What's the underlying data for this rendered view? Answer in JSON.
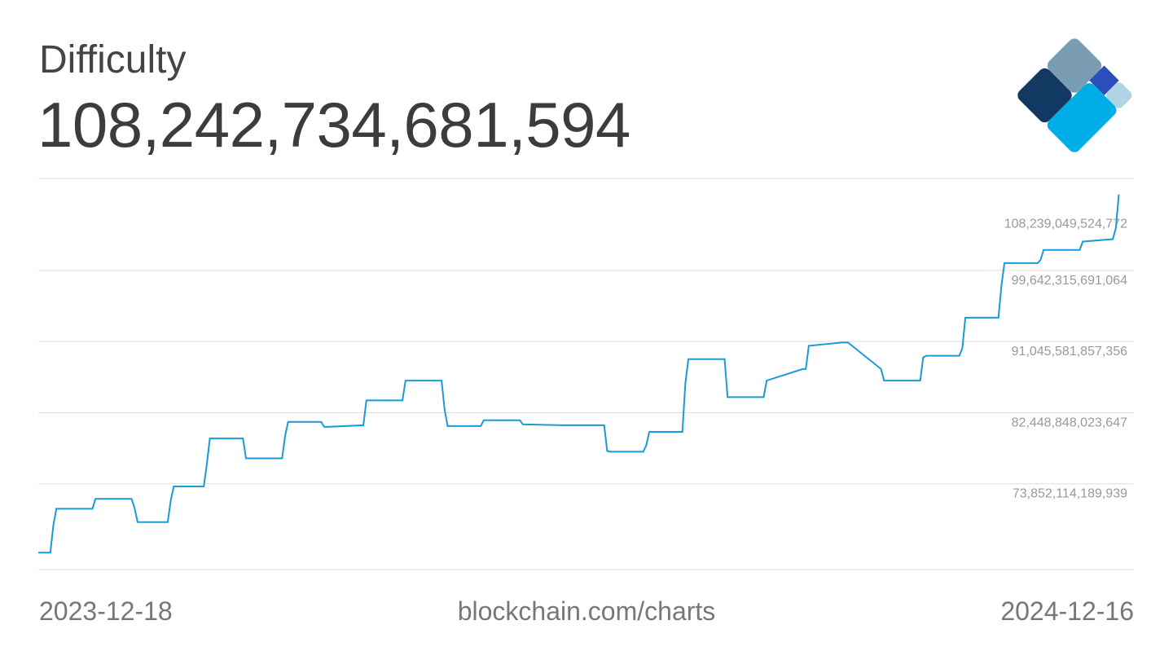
{
  "header": {
    "title": "Difficulty",
    "current_value": "108,242,734,681,594"
  },
  "logo": {
    "icon": "blockchain-logo-icon",
    "colors": [
      "#7b9db4",
      "#123962",
      "#2b4fba",
      "#00aee6",
      "#b1d4e5"
    ]
  },
  "footer": {
    "start_date": "2023-12-18",
    "source": "blockchain.com/charts",
    "end_date": "2024-12-16"
  },
  "chart_data": {
    "type": "line",
    "title": "Difficulty",
    "xlabel": "",
    "ylabel": "",
    "xlim": [
      "2023-12-18",
      "2024-12-16"
    ],
    "ylim": [
      65255380356231,
      112537416441626
    ],
    "grid": true,
    "line_color": "#1a9ad6",
    "y_ticks": [
      {
        "value": 108239049524772,
        "label": "108,239,049,524,772"
      },
      {
        "value": 99642315691064,
        "label": "99,642,315,691,064"
      },
      {
        "value": 91045581857356,
        "label": "91,045,581,857,356"
      },
      {
        "value": 82448848023647,
        "label": "82,448,848,023,647"
      },
      {
        "value": 73852114189939,
        "label": "73,852,114,189,939"
      }
    ],
    "series": [
      {
        "x": [
          "2023-12-18",
          "2023-12-22",
          "2023-12-23",
          "2023-12-24",
          "2023-12-29",
          "2024-01-05",
          "2024-01-06",
          "2024-01-18",
          "2024-01-19",
          "2024-01-20",
          "2024-01-30",
          "2024-01-31",
          "2024-02-01",
          "2024-02-11",
          "2024-02-12",
          "2024-02-13",
          "2024-02-24",
          "2024-02-25",
          "2024-03-08",
          "2024-03-09",
          "2024-03-10",
          "2024-03-21",
          "2024-03-22",
          "2024-03-23",
          "2024-04-04",
          "2024-04-05",
          "2024-04-06",
          "2024-04-17",
          "2024-04-18",
          "2024-04-19",
          "2024-04-30",
          "2024-05-01",
          "2024-05-02",
          "2024-05-13",
          "2024-05-14",
          "2024-05-15",
          "2024-05-26",
          "2024-05-27",
          "2024-05-28",
          "2024-06-09",
          "2024-06-10",
          "2024-06-11",
          "2024-06-23",
          "2024-06-24",
          "2024-06-25",
          "2024-07-06",
          "2024-07-07",
          "2024-07-08",
          "2024-07-19",
          "2024-07-20",
          "2024-07-21",
          "2024-08-01",
          "2024-08-02",
          "2024-08-03",
          "2024-08-14",
          "2024-08-15",
          "2024-08-16",
          "2024-08-28",
          "2024-08-29",
          "2024-08-30",
          "2024-09-10",
          "2024-09-11",
          "2024-09-12",
          "2024-09-23",
          "2024-09-24",
          "2024-09-25",
          "2024-10-06",
          "2024-10-07",
          "2024-10-08",
          "2024-10-19",
          "2024-10-20",
          "2024-10-21",
          "2024-11-01",
          "2024-11-02",
          "2024-11-03",
          "2024-11-14",
          "2024-11-15",
          "2024-11-16",
          "2024-11-27",
          "2024-11-28",
          "2024-11-29",
          "2024-12-09",
          "2024-12-10",
          "2024-12-11"
        ],
        "y": [
          67300000000000,
          67300000000000,
          70600000000000,
          72600000000000,
          72600000000000,
          72600000000000,
          73800000000000,
          73800000000000,
          72700000000000,
          71000000000000,
          71000000000000,
          73600000000000,
          75300000000000,
          75300000000000,
          78000000000000,
          81100000000000,
          81100000000000,
          78700000000000,
          78700000000000,
          81400000000000,
          83100000000000,
          83100000000000,
          82500000000000,
          82500000000000,
          82700000000000,
          85700000000000,
          85700000000000,
          85700000000000,
          88100000000000,
          88100000000000,
          88100000000000,
          84600000000000,
          82600000000000,
          82600000000000,
          83300000000000,
          83300000000000,
          83300000000000,
          82800000000000,
          82800000000000,
          82700000000000,
          82700000000000,
          82700000000000,
          82700000000000,
          79600000000000,
          79500000000000,
          79500000000000,
          80300000000000,
          81900000000000,
          81900000000000,
          87800000000000,
          90700000000000,
          90700000000000,
          90700000000000,
          86100000000000,
          86100000000000,
          86100000000000,
          88100000000000,
          89500000000000,
          89500000000000,
          92300000000000,
          92700000000000,
          92700000000000,
          92700000000000,
          89500000000000,
          88100000000000,
          88100000000000,
          88100000000000,
          90900000000000,
          91100000000000,
          91100000000000,
          92000000000000,
          95700000000000,
          95700000000000,
          99600000000000,
          102300000000000,
          102300000000000,
          102700000000000,
          103900000000000,
          103900000000000,
          103900000000000,
          104900000000000,
          105200000000000,
          106500000000000,
          110600000000000
        ]
      }
    ]
  }
}
